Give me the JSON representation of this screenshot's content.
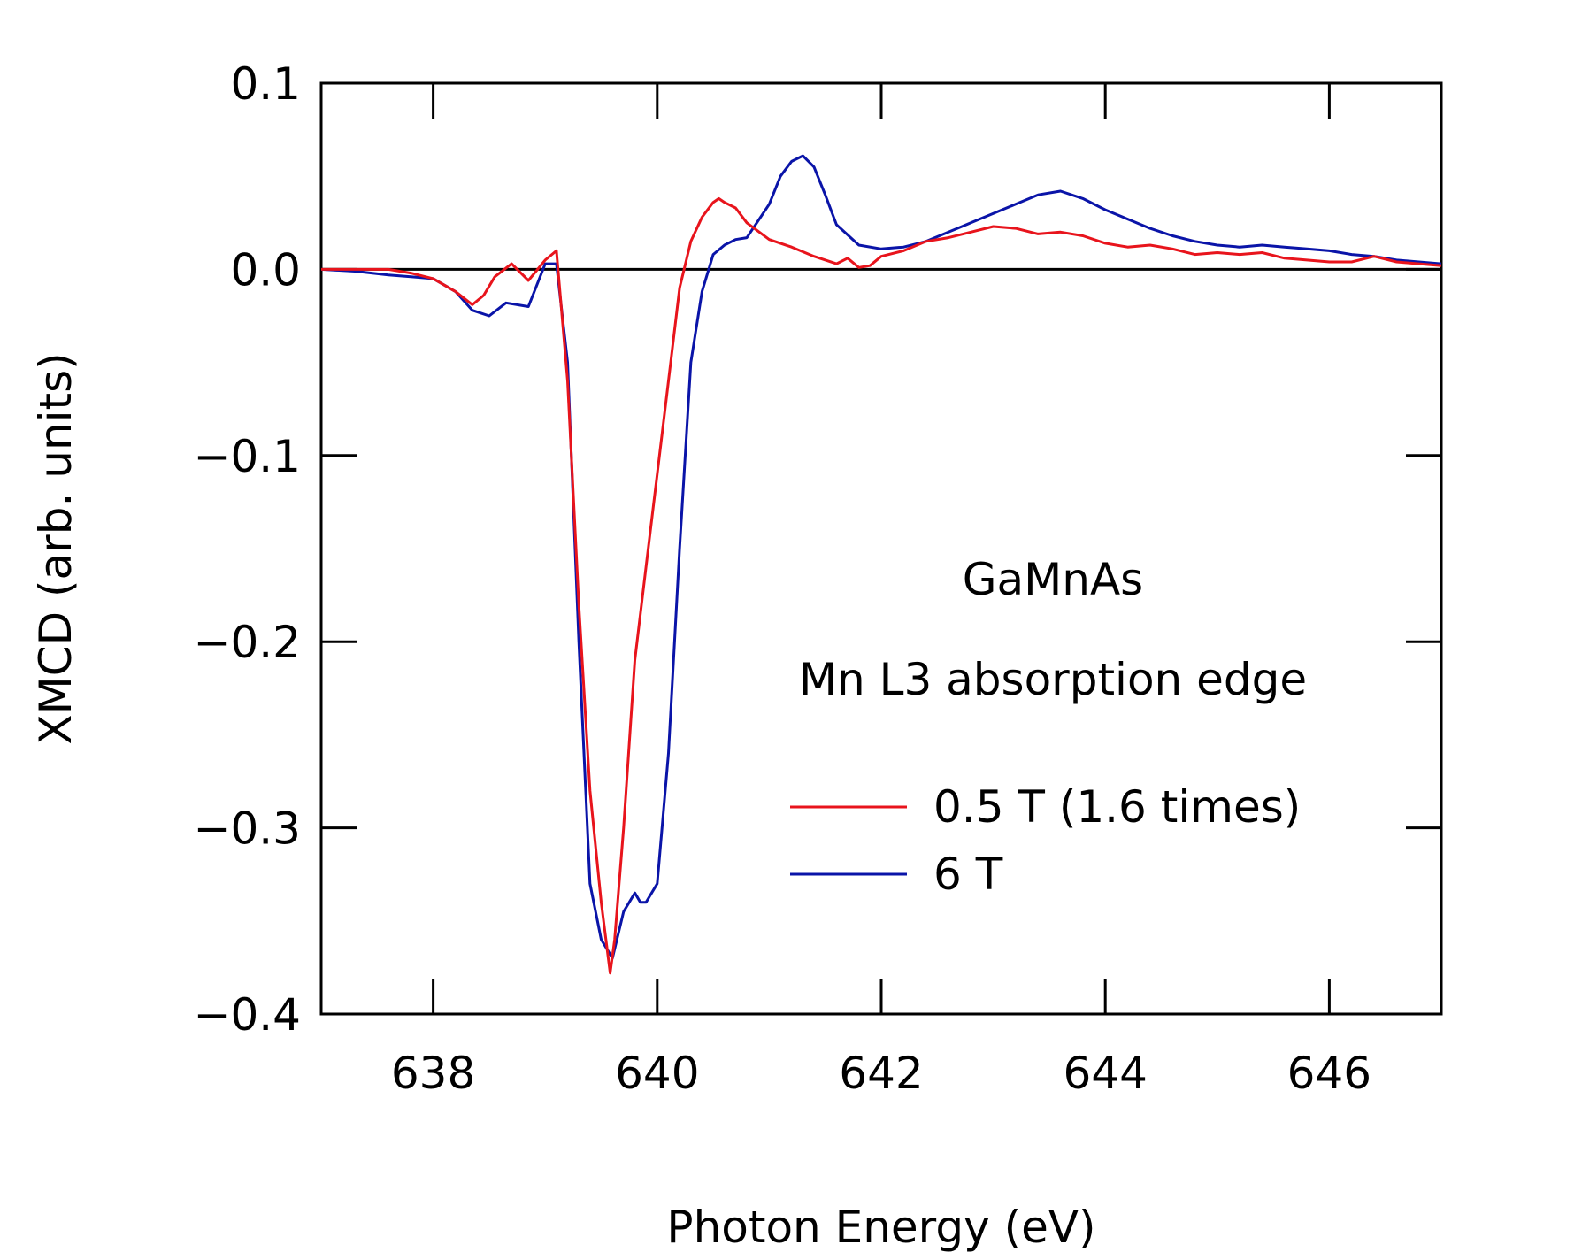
{
  "chart_data": {
    "type": "line",
    "title": "",
    "xlabel": "Photon Energy (eV)",
    "ylabel": "XMCD (arb. units)",
    "xlim": [
      637,
      647
    ],
    "ylim": [
      -0.4,
      0.1
    ],
    "x_ticks": [
      638,
      640,
      642,
      644,
      646
    ],
    "x_tick_labels": [
      "638",
      "640",
      "642",
      "644",
      "646"
    ],
    "y_ticks": [
      0.1,
      0.0,
      -0.1,
      -0.2,
      -0.3,
      -0.4
    ],
    "y_tick_labels": [
      "0.1",
      "0.0",
      "−0.1",
      "−0.2",
      "−0.3",
      "−0.4"
    ],
    "zero_line": true,
    "grid": false,
    "legend_position": "right",
    "annotations": [
      "GaMnAs",
      "Mn L3 absorption edge"
    ],
    "series": [
      {
        "name": "0.5 T (1.6 times)",
        "color": "#e8141c",
        "x": [
          637.0,
          637.3,
          637.6,
          637.8,
          638.0,
          638.2,
          638.35,
          638.45,
          638.55,
          638.7,
          638.85,
          639.0,
          639.1,
          639.2,
          639.3,
          639.4,
          639.5,
          639.58,
          639.62,
          639.7,
          639.8,
          639.9,
          640.0,
          640.1,
          640.2,
          640.3,
          640.4,
          640.5,
          640.55,
          640.6,
          640.7,
          640.8,
          641.0,
          641.2,
          641.4,
          641.6,
          641.7,
          641.8,
          641.9,
          642.0,
          642.2,
          642.4,
          642.6,
          642.8,
          643.0,
          643.2,
          643.4,
          643.6,
          643.8,
          644.0,
          644.2,
          644.4,
          644.6,
          644.8,
          645.0,
          645.2,
          645.4,
          645.6,
          645.8,
          646.0,
          646.2,
          646.4,
          646.6,
          646.8,
          647.0
        ],
        "y": [
          0.0,
          0.0,
          0.0,
          -0.002,
          -0.005,
          -0.012,
          -0.019,
          -0.014,
          -0.004,
          0.003,
          -0.006,
          0.005,
          0.01,
          -0.06,
          -0.18,
          -0.28,
          -0.34,
          -0.378,
          -0.36,
          -0.3,
          -0.21,
          -0.16,
          -0.11,
          -0.06,
          -0.01,
          0.015,
          0.028,
          0.036,
          0.038,
          0.036,
          0.033,
          0.025,
          0.016,
          0.012,
          0.007,
          0.003,
          0.006,
          0.001,
          0.002,
          0.007,
          0.01,
          0.015,
          0.017,
          0.02,
          0.023,
          0.022,
          0.019,
          0.02,
          0.018,
          0.014,
          0.012,
          0.013,
          0.011,
          0.008,
          0.009,
          0.008,
          0.009,
          0.006,
          0.005,
          0.004,
          0.004,
          0.007,
          0.004,
          0.003,
          0.002
        ]
      },
      {
        "name": "6 T",
        "color": "#0a14a8",
        "x": [
          637.0,
          637.3,
          637.6,
          637.8,
          638.0,
          638.2,
          638.35,
          638.5,
          638.65,
          638.85,
          639.0,
          639.1,
          639.2,
          639.3,
          639.4,
          639.5,
          639.6,
          639.7,
          639.8,
          639.85,
          639.9,
          640.0,
          640.1,
          640.2,
          640.3,
          640.4,
          640.5,
          640.6,
          640.7,
          640.8,
          641.0,
          641.1,
          641.2,
          641.3,
          641.4,
          641.5,
          641.6,
          641.8,
          642.0,
          642.2,
          642.4,
          642.6,
          642.8,
          643.0,
          643.2,
          643.4,
          643.6,
          643.8,
          644.0,
          644.2,
          644.4,
          644.6,
          644.8,
          645.0,
          645.2,
          645.4,
          645.6,
          645.8,
          646.0,
          646.2,
          646.4,
          646.6,
          646.8,
          647.0
        ],
        "y": [
          0.0,
          -0.001,
          -0.003,
          -0.004,
          -0.005,
          -0.012,
          -0.022,
          -0.025,
          -0.018,
          -0.02,
          0.003,
          0.003,
          -0.05,
          -0.2,
          -0.33,
          -0.36,
          -0.37,
          -0.345,
          -0.335,
          -0.34,
          -0.34,
          -0.33,
          -0.26,
          -0.15,
          -0.05,
          -0.012,
          0.008,
          0.013,
          0.016,
          0.017,
          0.035,
          0.05,
          0.058,
          0.061,
          0.055,
          0.04,
          0.024,
          0.013,
          0.011,
          0.012,
          0.015,
          0.02,
          0.025,
          0.03,
          0.035,
          0.04,
          0.042,
          0.038,
          0.032,
          0.027,
          0.022,
          0.018,
          0.015,
          0.013,
          0.012,
          0.013,
          0.012,
          0.011,
          0.01,
          0.008,
          0.007,
          0.005,
          0.004,
          0.003
        ]
      }
    ]
  }
}
